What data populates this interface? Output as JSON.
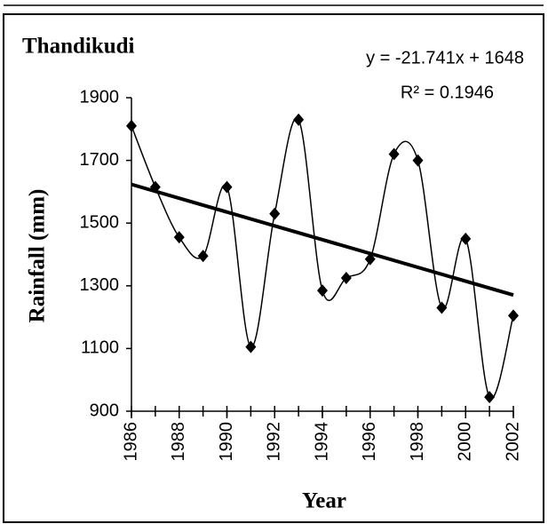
{
  "chart_data": {
    "type": "line",
    "title": "Thandikudi",
    "annotations": [
      "y = -21.741x + 1648",
      "R² = 0.1946"
    ],
    "x_label": "Year",
    "y_label": "Rainfall (mm)",
    "x": [
      1986,
      1987,
      1988,
      1989,
      1990,
      1991,
      1992,
      1993,
      1994,
      1995,
      1996,
      1997,
      1998,
      1999,
      2000,
      2001,
      2002
    ],
    "values": [
      1810,
      1615,
      1455,
      1395,
      1615,
      1105,
      1530,
      1830,
      1285,
      1325,
      1385,
      1720,
      1700,
      1230,
      1450,
      945,
      1205
    ],
    "color": "#000000",
    "trendline": true,
    "xlim": [
      1986,
      2002
    ],
    "xticks": [
      1986,
      1988,
      1990,
      1992,
      1994,
      1996,
      1998,
      2000,
      2002
    ],
    "ylim": [
      900,
      1900
    ],
    "yticks": [
      900,
      1100,
      1300,
      1500,
      1700,
      1900
    ]
  }
}
